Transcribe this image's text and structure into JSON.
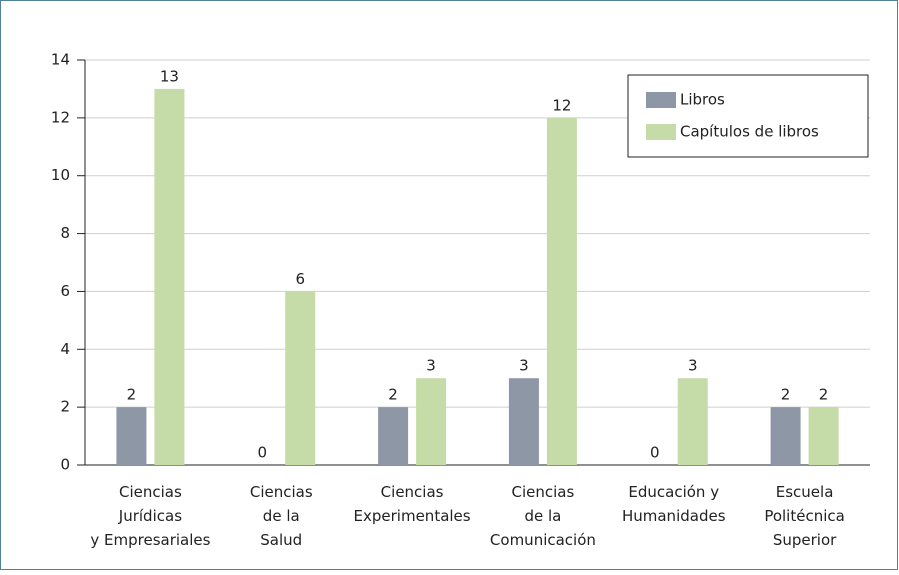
{
  "chart_data": {
    "type": "bar",
    "categories": [
      "Ciencias\nJurídicas\ny Empresariales",
      "Ciencias\nde la\nSalud",
      "Ciencias\nExperimentales",
      "Ciencias\nde la\nComunicación",
      "Educación y\nHumanidades",
      "Escuela\nPolitécnica\nSuperior"
    ],
    "series": [
      {
        "name": "Libros",
        "color": "#8e97a6",
        "values": [
          2,
          0,
          2,
          3,
          0,
          2
        ]
      },
      {
        "name": "Capítulos de libros",
        "color": "#c5dba8",
        "values": [
          13,
          6,
          3,
          12,
          3,
          2
        ]
      }
    ],
    "ylim": [
      0,
      14
    ],
    "yticks": [
      0,
      2,
      4,
      6,
      8,
      10,
      12,
      14
    ],
    "grid": true,
    "legend": "upper right"
  }
}
